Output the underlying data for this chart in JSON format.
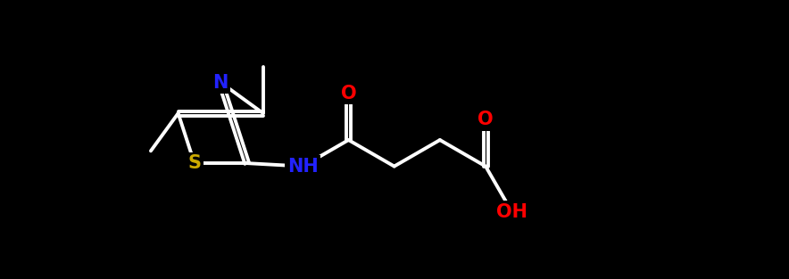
{
  "bg_color": "#000000",
  "atom_colors": {
    "C": "#ffffff",
    "N": "#2222ff",
    "O": "#ff0000",
    "S": "#ccaa00",
    "H": "#ffffff"
  },
  "bond_color": "#ffffff",
  "bond_width": 2.8,
  "figsize": [
    8.84,
    3.13
  ],
  "dpi": 100,
  "font_size_atom": 15
}
